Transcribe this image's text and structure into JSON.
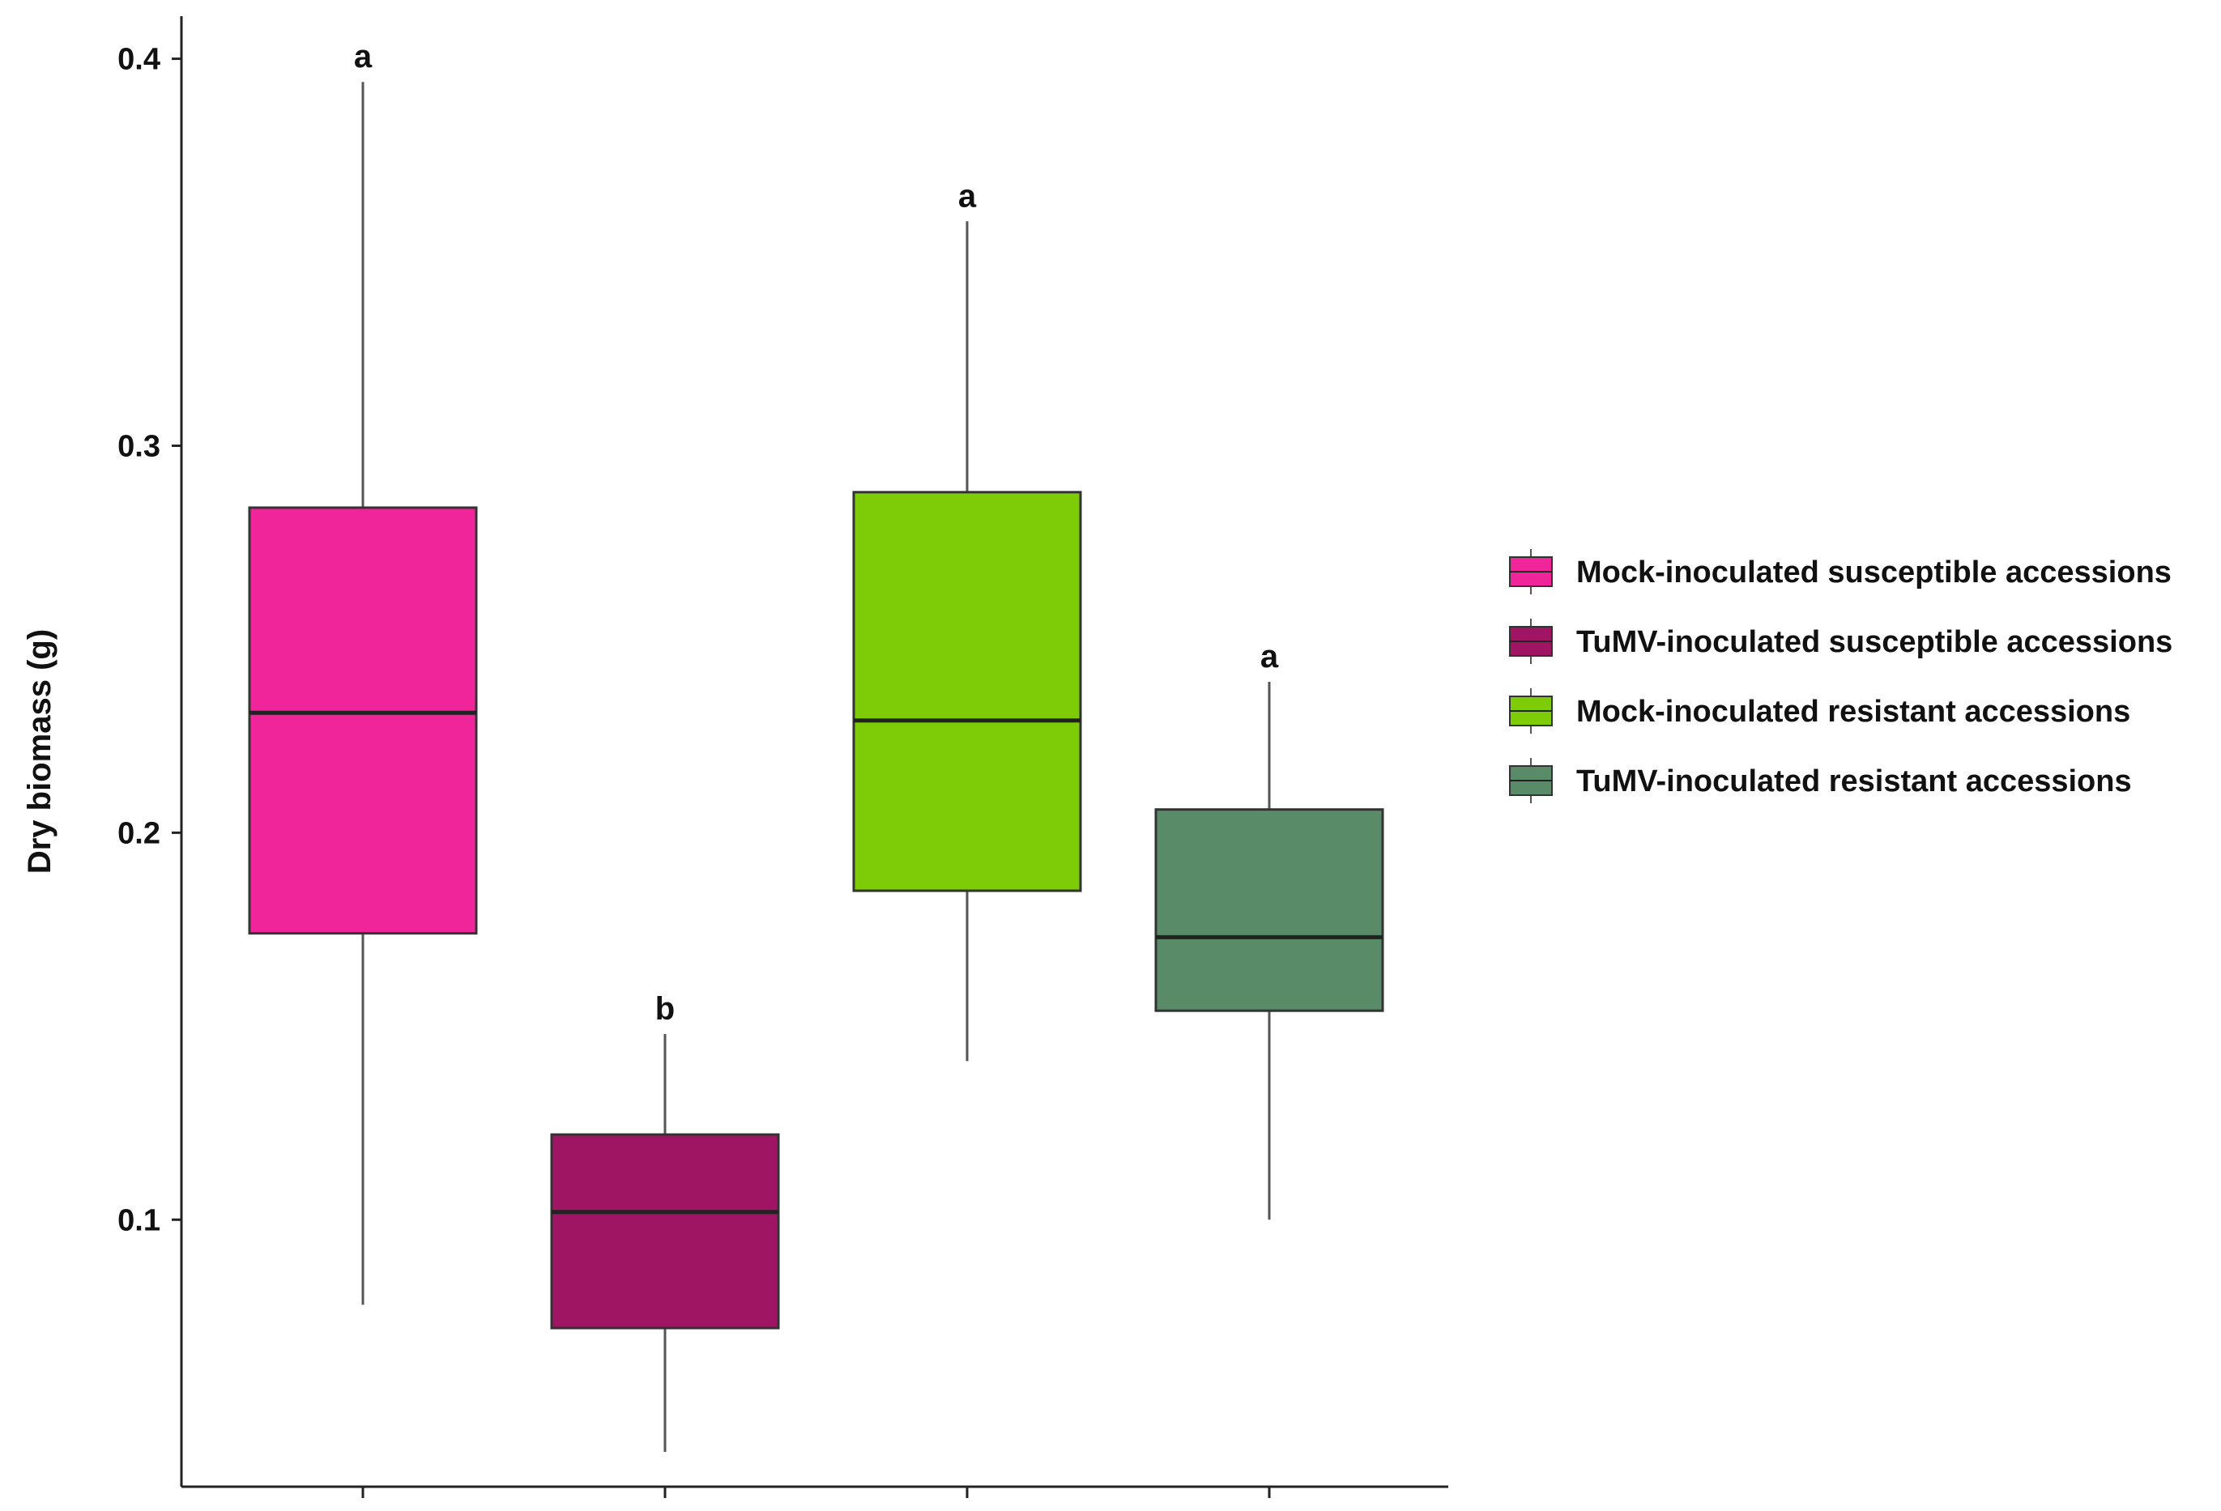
{
  "chart_data": {
    "type": "boxplot",
    "ylabel": "Dry biomass (g)",
    "xlabel": "",
    "ylim": [
      0.031,
      0.411
    ],
    "yticks": [
      0.1,
      0.2,
      0.3,
      0.4
    ],
    "ytick_labels": [
      "0.1",
      "0.2",
      "0.3",
      "0.4"
    ],
    "grid": false,
    "legend_position": "right",
    "series": [
      {
        "name": "Mock-inoculated susceptible accessions",
        "color": "#F0259A",
        "whisker_low": 0.078,
        "q1": 0.174,
        "median": 0.231,
        "q3": 0.284,
        "whisker_high": 0.394,
        "significance": "a"
      },
      {
        "name": "TuMV-inoculated susceptible accessions",
        "color": "#A01464",
        "whisker_low": 0.04,
        "q1": 0.072,
        "median": 0.102,
        "q3": 0.122,
        "whisker_high": 0.148,
        "significance": "b"
      },
      {
        "name": "Mock-inoculated resistant accessions",
        "color": "#7ECB07",
        "whisker_low": 0.141,
        "q1": 0.185,
        "median": 0.229,
        "q3": 0.288,
        "whisker_high": 0.358,
        "significance": "a"
      },
      {
        "name": "TuMV-inoculated resistant accessions",
        "color": "#598B69",
        "whisker_low": 0.1,
        "q1": 0.154,
        "median": 0.173,
        "q3": 0.206,
        "whisker_high": 0.239,
        "significance": "a"
      }
    ]
  }
}
